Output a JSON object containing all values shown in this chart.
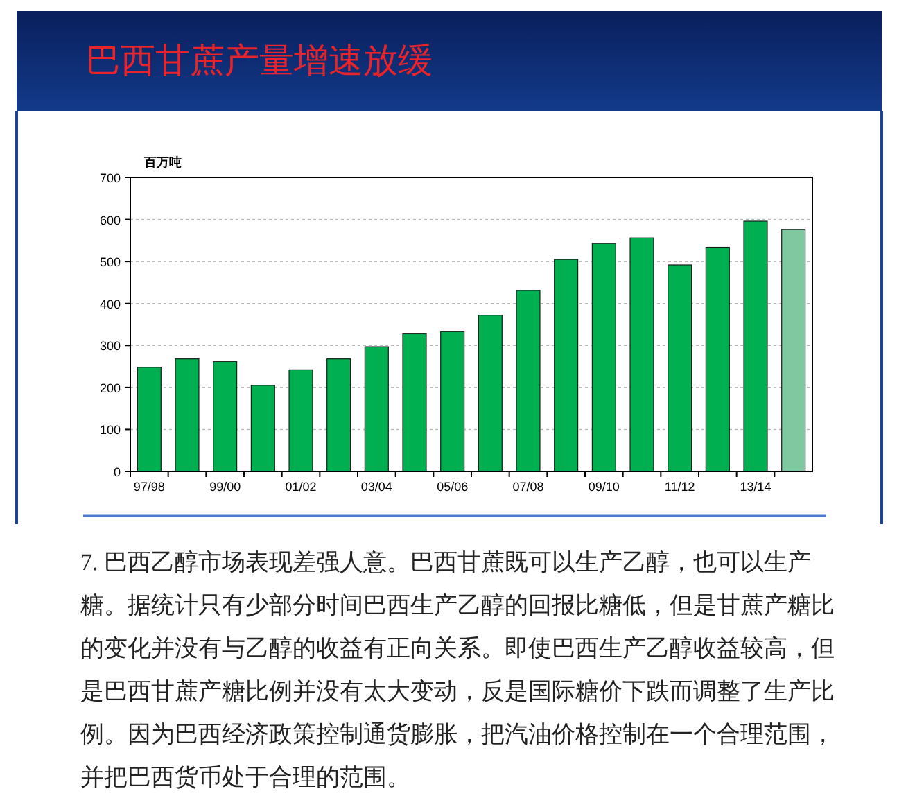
{
  "chart_data": {
    "type": "bar",
    "title": "巴西甘蔗产量增速放缓",
    "ylabel": "百万吨",
    "categories": [
      "97/98",
      null,
      "99/00",
      null,
      "01/02",
      null,
      "03/04",
      null,
      "05/06",
      null,
      "07/08",
      null,
      "09/10",
      null,
      "11/12",
      null,
      "13/14",
      null
    ],
    "values": [
      248,
      268,
      262,
      205,
      242,
      268,
      297,
      328,
      333,
      372,
      431,
      505,
      543,
      556,
      492,
      534,
      596,
      576
    ],
    "colors": [
      "#00b050",
      "#00b050",
      "#00b050",
      "#00b050",
      "#00b050",
      "#00b050",
      "#00b050",
      "#00b050",
      "#00b050",
      "#00b050",
      "#00b050",
      "#00b050",
      "#00b050",
      "#00b050",
      "#00b050",
      "#00b050",
      "#00b050",
      "#80c8a0"
    ],
    "ylim": [
      0,
      700
    ],
    "yticks": [
      0,
      100,
      200,
      300,
      400,
      500,
      600,
      700
    ],
    "grid": "y",
    "annotations": [
      "7. 巴西乙醇市场表现差强人意。巴西甘蔗既可以生产乙醇，也可以生产糖。据统计只有少部分时间巴西生产乙醇的回报比糖低，但是甘蔗产糖比的变化并没有与乙醇的收益有正向关系。即使巴西生产乙醇收益较高，但是巴西甘蔗产糖比例并没有太大变动，反是国际糖价下跌而调整了生产比例。因为巴西经济政策控制通货膨胀，把汽油价格控制在一个合理范围，并把巴西货币处于合理的范围。"
    ]
  }
}
